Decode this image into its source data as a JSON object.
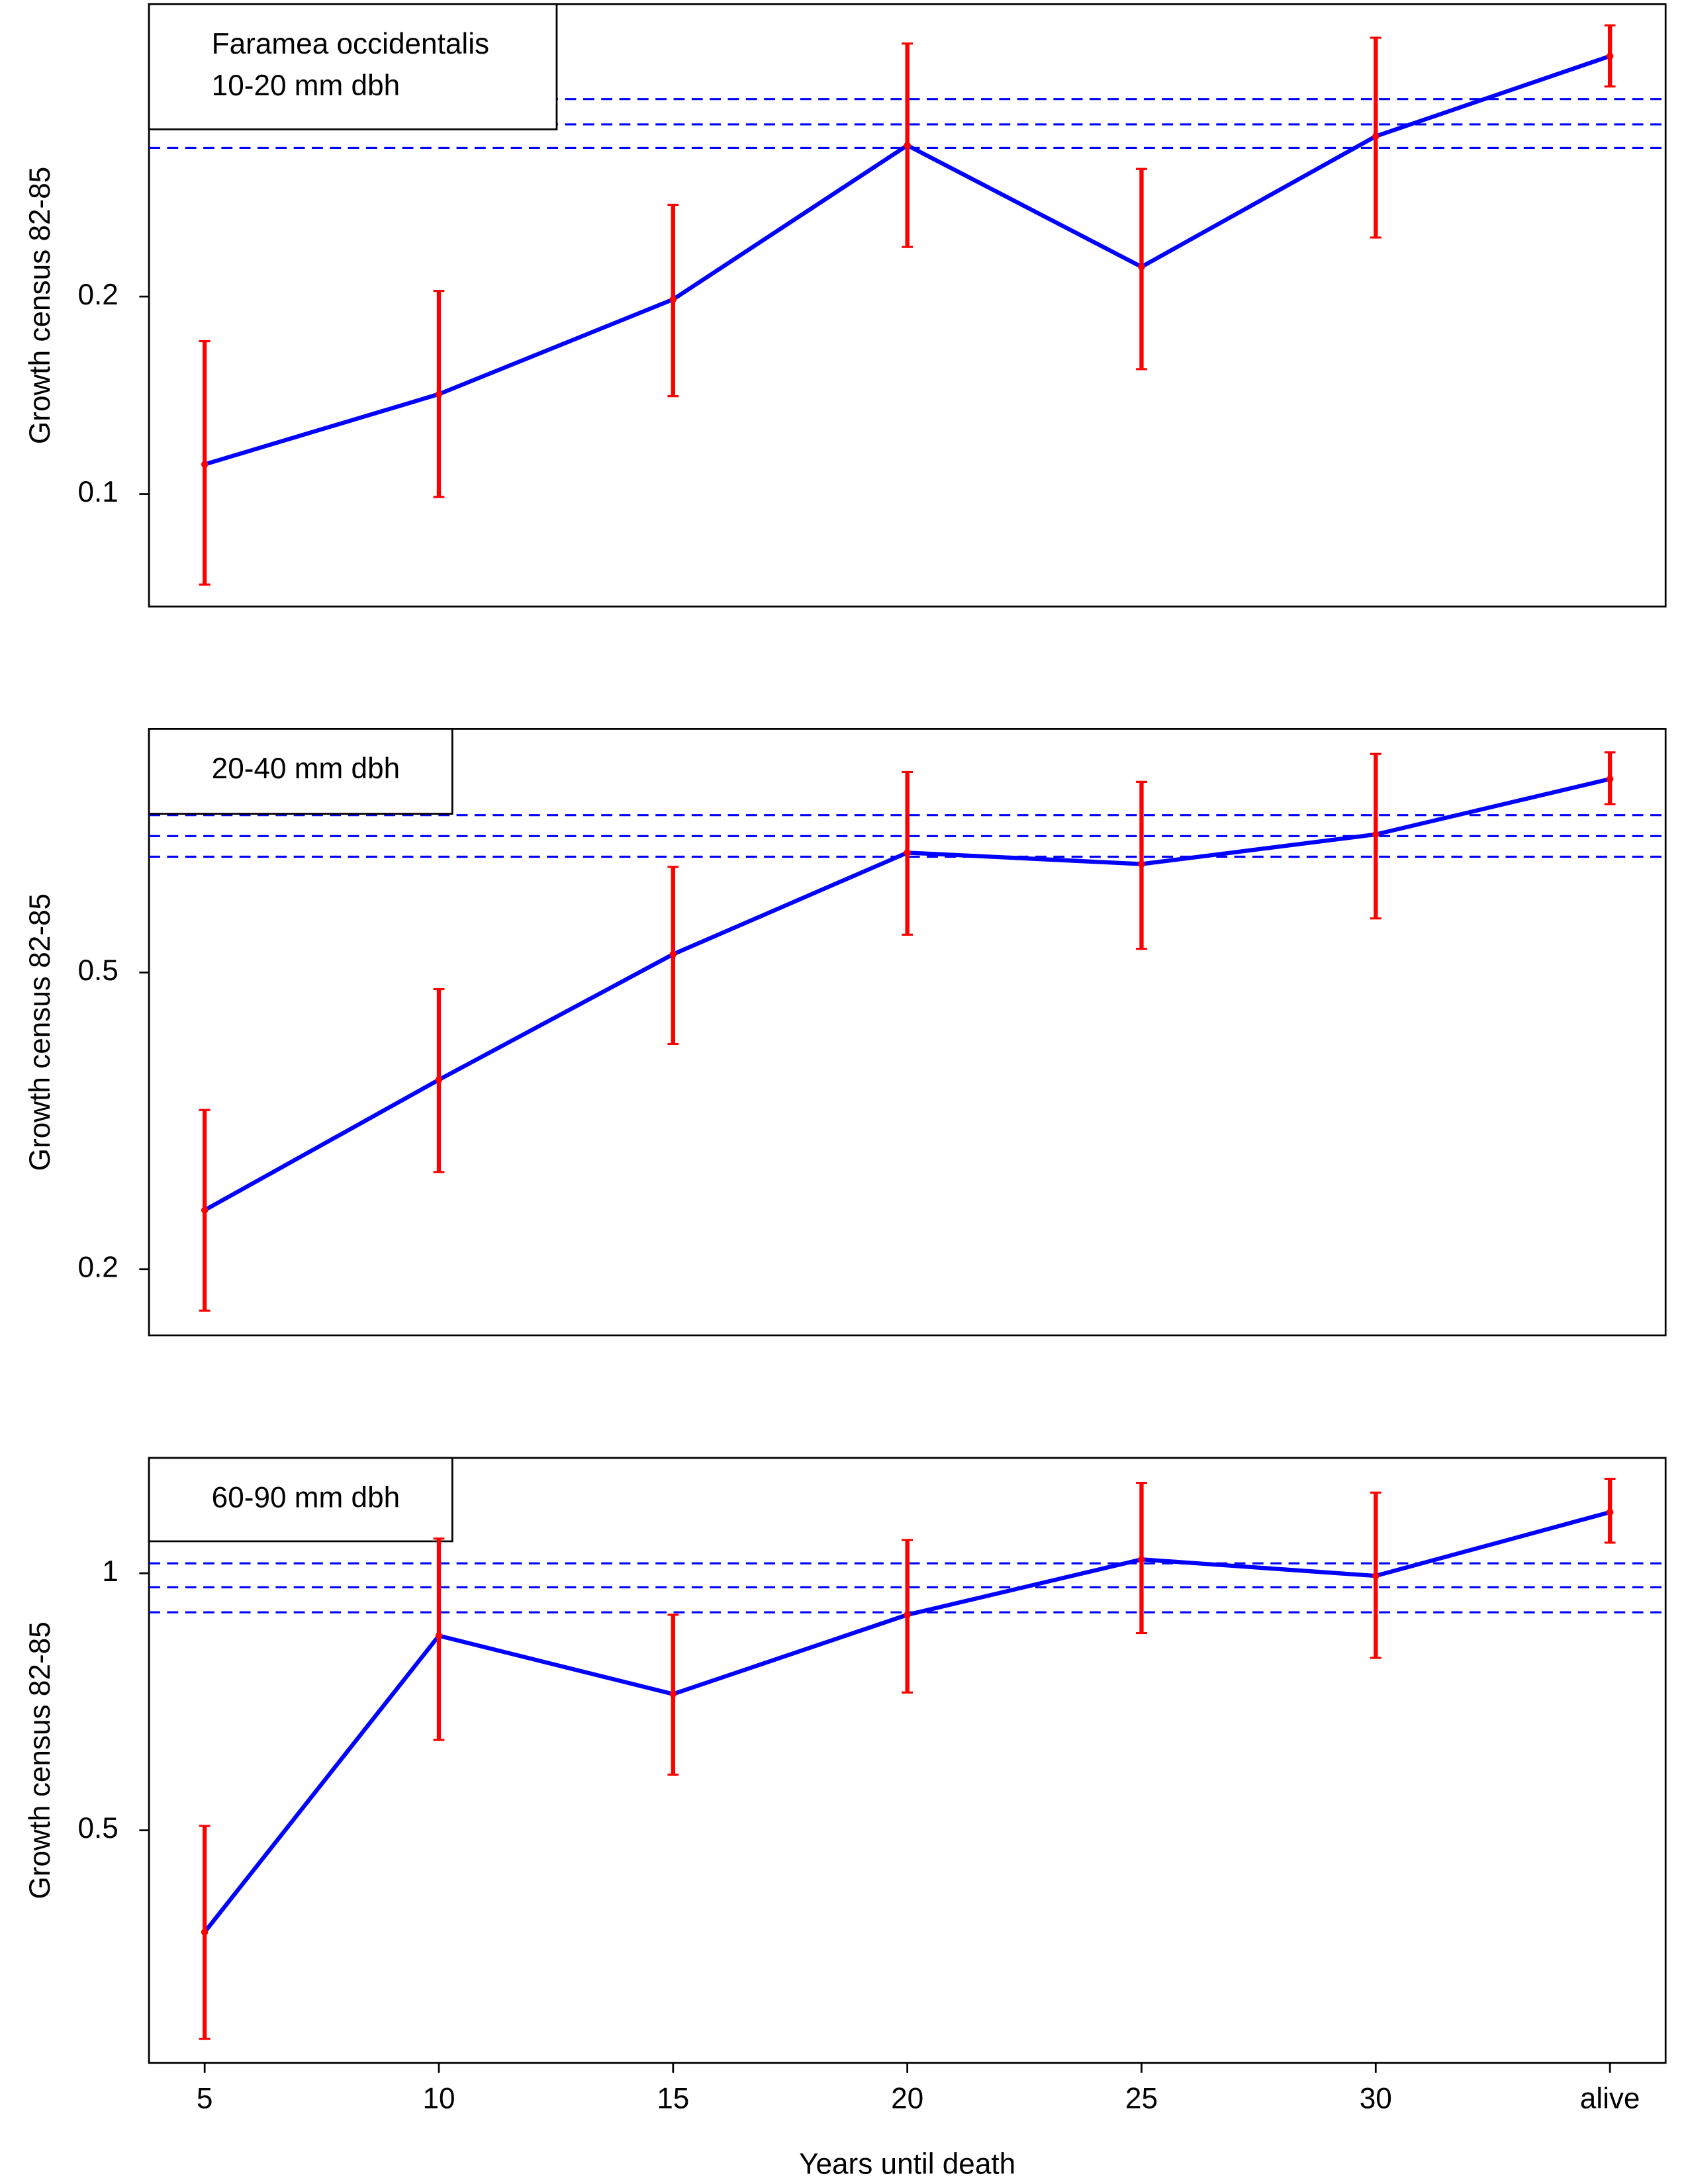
{
  "chart_data": {
    "type": "line",
    "categories": [
      "5",
      "10",
      "15",
      "20",
      "25",
      "30",
      "alive"
    ],
    "xlabel": "Years until death",
    "panels": [
      {
        "title_lines": [
          "Faramea occidentalis",
          "10-20 mm dbh"
        ],
        "ylabel": "Growth census 82-85",
        "log_y": true,
        "ylim": [
          0.0674,
          0.558
        ],
        "yticks": [
          0.1,
          0.2
        ],
        "series": [
          {
            "color": "#0000ff",
            "error_color": "#ff0000",
            "values": [
              0.111,
              0.142,
              0.198,
              0.34,
              0.222,
              0.351,
              0.465
            ],
            "lower": [
              0.0728,
              0.099,
              0.141,
              0.238,
              0.155,
              0.246,
              0.418
            ],
            "upper": [
              0.171,
              0.204,
              0.276,
              0.486,
              0.313,
              0.496,
              0.518
            ]
          }
        ],
        "hlines": {
          "color": "#0000ff",
          "values": [
            0.4,
            0.366,
            0.337
          ]
        }
      },
      {
        "title_lines": [
          "20-40 mm dbh"
        ],
        "ylabel": "Growth census 82-85",
        "log_y": true,
        "ylim": [
          0.163,
          1.061
        ],
        "yticks": [
          0.2,
          0.5
        ],
        "series": [
          {
            "color": "#0000ff",
            "error_color": "#ff0000",
            "values": [
              0.24,
              0.359,
              0.529,
              0.724,
              0.699,
              0.766,
              0.909
            ],
            "lower": [
              0.176,
              0.27,
              0.401,
              0.562,
              0.538,
              0.591,
              0.841
            ],
            "upper": [
              0.327,
              0.475,
              0.693,
              0.929,
              0.901,
              0.982,
              0.987
            ]
          }
        ],
        "hlines": {
          "color": "#0000ff",
          "values": [
            0.813,
            0.762,
            0.715
          ]
        }
      },
      {
        "title_lines": [
          "60-90 mm dbh"
        ],
        "ylabel": "Growth census 82-85",
        "log_y": true,
        "ylim": [
          0.267,
          1.365
        ],
        "yticks": [
          0.5,
          1
        ],
        "series": [
          {
            "color": "#0000ff",
            "error_color": "#ff0000",
            "values": [
              0.38,
              0.845,
              0.722,
              0.894,
              1.038,
              0.993,
              1.179
            ],
            "lower": [
              0.285,
              0.638,
              0.581,
              0.725,
              0.851,
              0.796,
              1.086
            ],
            "upper": [
              0.506,
              1.098,
              0.894,
              1.094,
              1.276,
              1.243,
              1.29
            ]
          }
        ],
        "hlines": {
          "color": "#0000ff",
          "values": [
            1.027,
            0.963,
            0.9
          ]
        }
      }
    ]
  }
}
